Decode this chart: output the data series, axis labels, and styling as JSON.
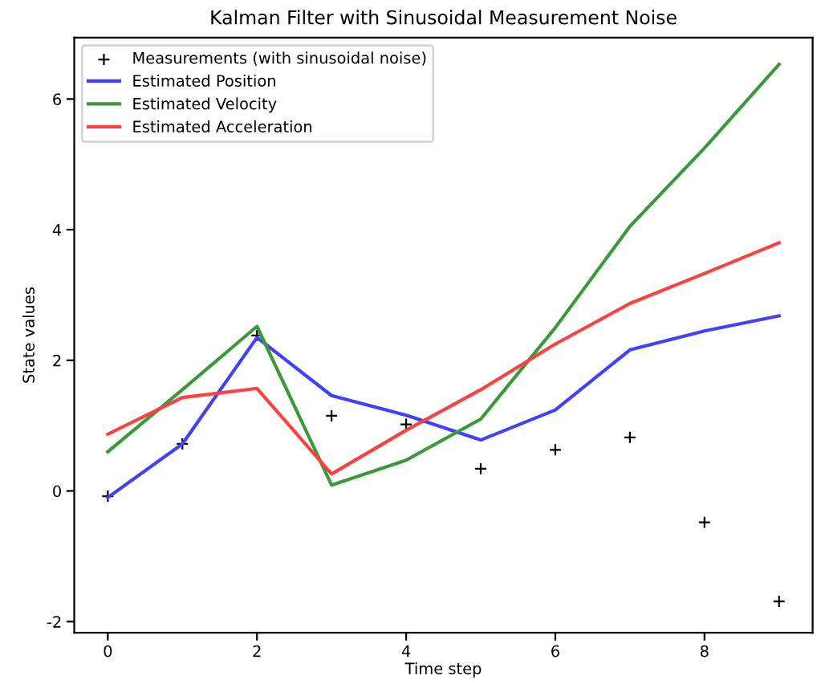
{
  "chart_data": {
    "type": "line",
    "title": "Kalman Filter with Sinusoidal Measurement Noise",
    "xlabel": "Time step",
    "ylabel": "State values",
    "x": [
      0,
      1,
      2,
      3,
      4,
      5,
      6,
      7,
      8,
      9
    ],
    "series": [
      {
        "name": "Measurements (with sinusoidal noise)",
        "type": "scatter",
        "marker": "cross",
        "color": "#000000",
        "values": [
          -0.08,
          0.72,
          2.38,
          1.15,
          1.02,
          0.34,
          0.63,
          0.82,
          -0.48,
          -1.69
        ]
      },
      {
        "name": "Estimated Position",
        "color": "#4040ff",
        "values": [
          -0.1,
          0.72,
          2.35,
          1.46,
          1.16,
          0.78,
          1.24,
          2.16,
          2.45,
          2.68
        ]
      },
      {
        "name": "Estimated Velocity",
        "color": "#3a9a3a",
        "values": [
          0.6,
          1.55,
          2.52,
          0.09,
          0.47,
          1.1,
          2.5,
          4.05,
          5.25,
          6.53
        ]
      },
      {
        "name": "Estimated Acceleration",
        "color": "#ff4040",
        "values": [
          0.87,
          1.43,
          1.57,
          0.26,
          0.93,
          1.55,
          2.25,
          2.87,
          3.33,
          3.8
        ]
      }
    ],
    "xlim": [
      -0.45,
      9.45
    ],
    "ylim": [
      -2.17,
      6.94
    ],
    "xticks": [
      0,
      2,
      4,
      6,
      8
    ],
    "yticks": [
      -2,
      0,
      2,
      4,
      6
    ],
    "legend": "top left",
    "grid": false,
    "line_style": "solid"
  }
}
